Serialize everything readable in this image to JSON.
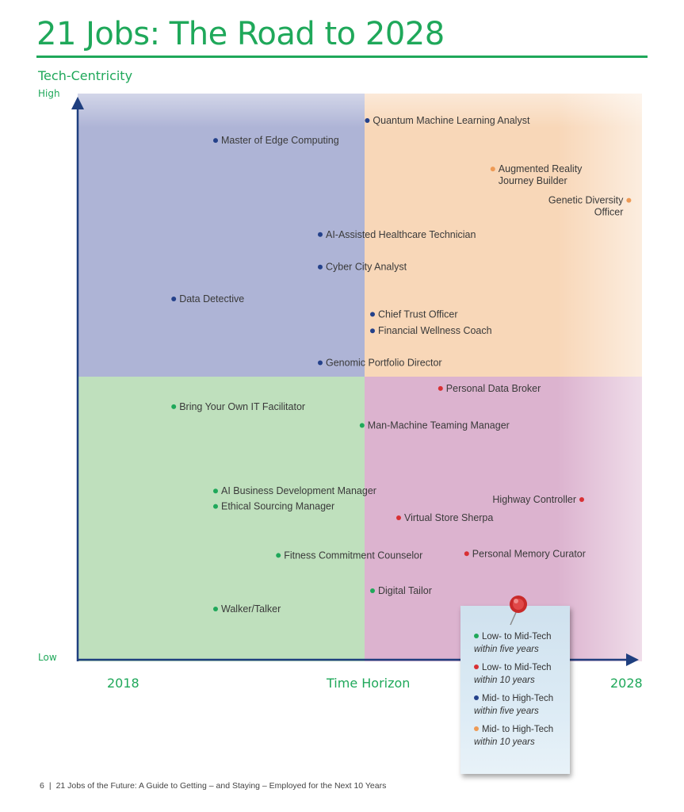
{
  "title": "21 Jobs: The Road to 2028",
  "footer": {
    "page_number": "6",
    "text": "21 Jobs of the Future: A Guide to Getting – and Staying – Employed for the Next 10 Years"
  },
  "colors": {
    "accent": "#1fa85a",
    "axis": "#1f3f7f",
    "green": "#1fa85a",
    "red": "#d83034",
    "navy": "#24418a",
    "orange": "#ee9a55"
  },
  "chart_data": {
    "type": "scatter",
    "title": "21 Jobs: The Road to 2028",
    "ylabel": "Tech-Centricity",
    "xlabel": "Time Horizon",
    "y_ticks": {
      "high": "High",
      "low": "Low"
    },
    "x_ticks": {
      "start": "2018",
      "end": "2028"
    },
    "xlim": [
      2018,
      2028
    ],
    "ylim": [
      0,
      100
    ],
    "grid": false,
    "quadrants": [
      {
        "region": "top-left",
        "color": "#aeb4d6"
      },
      {
        "region": "top-right",
        "color": "#f8d7b8"
      },
      {
        "region": "bottom-left",
        "color": "#bfe0bd"
      },
      {
        "region": "bottom-right",
        "color": "#dcb3cf"
      }
    ],
    "series": [
      {
        "color": "#24418a",
        "points": [
          {
            "label": [
              "Quantum Machine Learning Analyst"
            ],
            "x": 2022.9,
            "y": 95,
            "align": "left"
          },
          {
            "label": [
              "Master of Edge Computing"
            ],
            "x": 2020.0,
            "y": 91.5,
            "align": "left"
          },
          {
            "label": [
              "AI-Assisted Healthcare Technician"
            ],
            "x": 2022.0,
            "y": 75,
            "align": "left"
          },
          {
            "label": [
              "Cyber City Analyst"
            ],
            "x": 2022.0,
            "y": 69.3,
            "align": "left"
          },
          {
            "label": [
              "Data Detective"
            ],
            "x": 2019.2,
            "y": 63.7,
            "align": "left"
          },
          {
            "label": [
              "Chief Trust Officer"
            ],
            "x": 2023.0,
            "y": 61,
            "align": "left"
          },
          {
            "label": [
              "Financial Wellness Coach"
            ],
            "x": 2023.0,
            "y": 58.1,
            "align": "left"
          },
          {
            "label": [
              "Genomic Portfolio Director"
            ],
            "x": 2022.0,
            "y": 52.5,
            "align": "left"
          }
        ]
      },
      {
        "color": "#ee9a55",
        "points": [
          {
            "label": [
              "Augmented Reality",
              "Journey Builder"
            ],
            "x": 2025.3,
            "y": 86.5,
            "align": "left"
          },
          {
            "label": [
              "Genetic Diversity",
              "Officer"
            ],
            "x": 2027.9,
            "y": 81,
            "align": "right"
          }
        ]
      },
      {
        "color": "#d83034",
        "points": [
          {
            "label": [
              "Personal Data Broker"
            ],
            "x": 2024.3,
            "y": 48,
            "align": "left"
          },
          {
            "label": [
              "Highway Controller"
            ],
            "x": 2027.0,
            "y": 28.5,
            "align": "right"
          },
          {
            "label": [
              "Virtual Store Sherpa"
            ],
            "x": 2023.5,
            "y": 25.3,
            "align": "left"
          },
          {
            "label": [
              "Personal Memory Curator"
            ],
            "x": 2024.8,
            "y": 19,
            "align": "left"
          }
        ]
      },
      {
        "color": "#1fa85a",
        "points": [
          {
            "label": [
              "Bring Your Own IT Facilitator"
            ],
            "x": 2019.2,
            "y": 44.8,
            "align": "left"
          },
          {
            "label": [
              "Man-Machine Teaming Manager"
            ],
            "x": 2022.8,
            "y": 41.5,
            "align": "left"
          },
          {
            "label": [
              "AI Business Development Manager"
            ],
            "x": 2020.0,
            "y": 30,
            "align": "left"
          },
          {
            "label": [
              "Ethical Sourcing Manager"
            ],
            "x": 2020.0,
            "y": 27.3,
            "align": "left"
          },
          {
            "label": [
              "Fitness Commitment Counselor"
            ],
            "x": 2021.2,
            "y": 18.7,
            "align": "left"
          },
          {
            "label": [
              "Digital Tailor"
            ],
            "x": 2023.0,
            "y": 12.5,
            "align": "left"
          },
          {
            "label": [
              "Walker/Talker"
            ],
            "x": 2020.0,
            "y": 9.3,
            "align": "left"
          }
        ]
      }
    ],
    "legend": {
      "placement": "bottom-right",
      "items": [
        {
          "line1": "Low- to Mid-Tech",
          "line2": "within five years",
          "color": "#1fa85a"
        },
        {
          "line1": "Low- to Mid-Tech",
          "line2": "within 10 years",
          "color": "#d83034"
        },
        {
          "line1": "Mid- to High-Tech",
          "line2": "within five years",
          "color": "#24418a"
        },
        {
          "line1": "Mid- to High-Tech",
          "line2": "within 10 years",
          "color": "#ee9a55"
        }
      ]
    }
  }
}
